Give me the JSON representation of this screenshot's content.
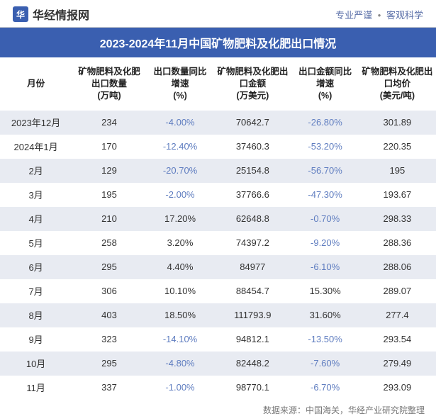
{
  "header": {
    "site_name": "华经情报网",
    "logo_text": "华",
    "tagline_left": "专业严谨",
    "tagline_right": "客观科学"
  },
  "title": "2023-2024年11月中国矿物肥料及化肥出口情况",
  "table": {
    "columns": [
      "月份",
      "矿物肥料及化肥出口数量\n(万吨)",
      "出口数量同比增速\n(%)",
      "矿物肥料及化肥出口金额\n(万美元)",
      "出口金额同比增速\n(%)",
      "矿物肥料及化肥出口均价\n(美元/吨)"
    ],
    "col_widths": [
      "88px",
      "92px",
      "82px",
      "96px",
      "82px",
      "95px"
    ],
    "rows": [
      {
        "month": "2023年12月",
        "qty": "234",
        "qty_g": "-4.00%",
        "qty_g_neg": true,
        "amt": "70642.7",
        "amt_g": "-26.80%",
        "amt_g_neg": true,
        "price": "301.89"
      },
      {
        "month": "2024年1月",
        "qty": "170",
        "qty_g": "-12.40%",
        "qty_g_neg": true,
        "amt": "37460.3",
        "amt_g": "-53.20%",
        "amt_g_neg": true,
        "price": "220.35"
      },
      {
        "month": "2月",
        "qty": "129",
        "qty_g": "-20.70%",
        "qty_g_neg": true,
        "amt": "25154.8",
        "amt_g": "-56.70%",
        "amt_g_neg": true,
        "price": "195"
      },
      {
        "month": "3月",
        "qty": "195",
        "qty_g": "-2.00%",
        "qty_g_neg": true,
        "amt": "37766.6",
        "amt_g": "-47.30%",
        "amt_g_neg": true,
        "price": "193.67"
      },
      {
        "month": "4月",
        "qty": "210",
        "qty_g": "17.20%",
        "qty_g_neg": false,
        "amt": "62648.8",
        "amt_g": "-0.70%",
        "amt_g_neg": true,
        "price": "298.33"
      },
      {
        "month": "5月",
        "qty": "258",
        "qty_g": "3.20%",
        "qty_g_neg": false,
        "amt": "74397.2",
        "amt_g": "-9.20%",
        "amt_g_neg": true,
        "price": "288.36"
      },
      {
        "month": "6月",
        "qty": "295",
        "qty_g": "4.40%",
        "qty_g_neg": false,
        "amt": "84977",
        "amt_g": "-6.10%",
        "amt_g_neg": true,
        "price": "288.06"
      },
      {
        "month": "7月",
        "qty": "306",
        "qty_g": "10.10%",
        "qty_g_neg": false,
        "amt": "88454.7",
        "amt_g": "15.30%",
        "amt_g_neg": false,
        "price": "289.07"
      },
      {
        "month": "8月",
        "qty": "403",
        "qty_g": "18.50%",
        "qty_g_neg": false,
        "amt": "111793.9",
        "amt_g": "31.60%",
        "amt_g_neg": false,
        "price": "277.4"
      },
      {
        "month": "9月",
        "qty": "323",
        "qty_g": "-14.10%",
        "qty_g_neg": true,
        "amt": "94812.1",
        "amt_g": "-13.50%",
        "amt_g_neg": true,
        "price": "293.54"
      },
      {
        "month": "10月",
        "qty": "295",
        "qty_g": "-4.80%",
        "qty_g_neg": true,
        "amt": "82448.2",
        "amt_g": "-7.60%",
        "amt_g_neg": true,
        "price": "279.49"
      },
      {
        "month": "11月",
        "qty": "337",
        "qty_g": "-1.00%",
        "qty_g_neg": true,
        "amt": "98770.1",
        "amt_g": "-6.70%",
        "amt_g_neg": true,
        "price": "293.09"
      }
    ],
    "even_bg": "#e8ebf2",
    "odd_bg": "#ffffff",
    "neg_color": "#5f7dc0",
    "pos_color": "#333333"
  },
  "footer": "数据来源：中国海关，华经产业研究院整理",
  "watermark": "华经产业研究院"
}
